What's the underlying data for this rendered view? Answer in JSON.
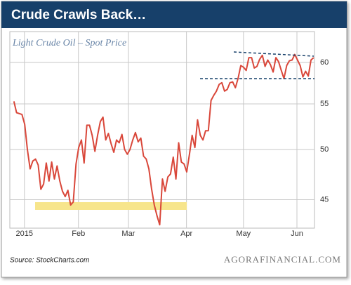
{
  "chart_data": {
    "type": "line",
    "title": "Crude Crawls Back…",
    "subtitle": "Light Crude Oil – Spot Price",
    "source": "Source: StockCharts.com",
    "brand": "AGORAFINANCIAL.COM",
    "yscale": "log",
    "grid": true,
    "xlim": [
      -1.5,
      111.3
    ],
    "xticks": [
      {
        "value": 3.9,
        "label": "2015"
      },
      {
        "value": 23.9,
        "label": "Feb"
      },
      {
        "value": 42.4,
        "label": "Mar"
      },
      {
        "value": 63.9,
        "label": "Apr"
      },
      {
        "value": 85,
        "label": "May"
      },
      {
        "value": 104.8,
        "label": "Jun"
      }
    ],
    "ylim": [
      42.4,
      64
    ],
    "yticks": [
      45,
      50,
      55,
      60
    ],
    "series": [
      {
        "color": "#d9473a",
        "values": [
          55.3,
          54,
          53.9,
          53.8,
          52.7,
          50,
          48,
          48.8,
          49,
          48.4,
          46,
          46.5,
          48.6,
          46.8,
          48.7,
          47,
          48.3,
          46.8,
          45.8,
          45.3,
          45.9,
          44.5,
          44.8,
          48.5,
          50.2,
          51,
          48.6,
          52.6,
          52.6,
          51.5,
          49.8,
          51.5,
          53,
          53.5,
          51,
          51.7,
          50.6,
          49.7,
          51,
          50.7,
          51.6,
          50,
          49.5,
          50,
          51,
          51.8,
          50.8,
          51.2,
          49.3,
          49,
          48,
          46,
          44.5,
          43.5,
          42.7,
          47,
          45.8,
          47.2,
          47.5,
          49.2,
          47,
          50.7,
          48.7,
          48.5,
          47.7,
          49.5,
          51.5,
          50.2,
          53.2,
          51.5,
          51,
          52,
          52,
          55.4,
          56,
          56.5,
          57.3,
          57.5,
          56.5,
          56.7,
          57.5,
          57.6,
          56.9,
          58,
          59.6,
          59.4,
          59,
          60.6,
          60.6,
          59.3,
          59.5,
          60.4,
          60.9,
          59.5,
          60.3,
          59.7,
          58.8,
          60.6,
          60.1,
          59,
          58,
          59.6,
          60.2,
          60.3,
          61,
          60.3,
          59.6,
          58.2,
          58.9,
          58.3,
          60.3,
          60.6
        ]
      }
    ]
  }
}
